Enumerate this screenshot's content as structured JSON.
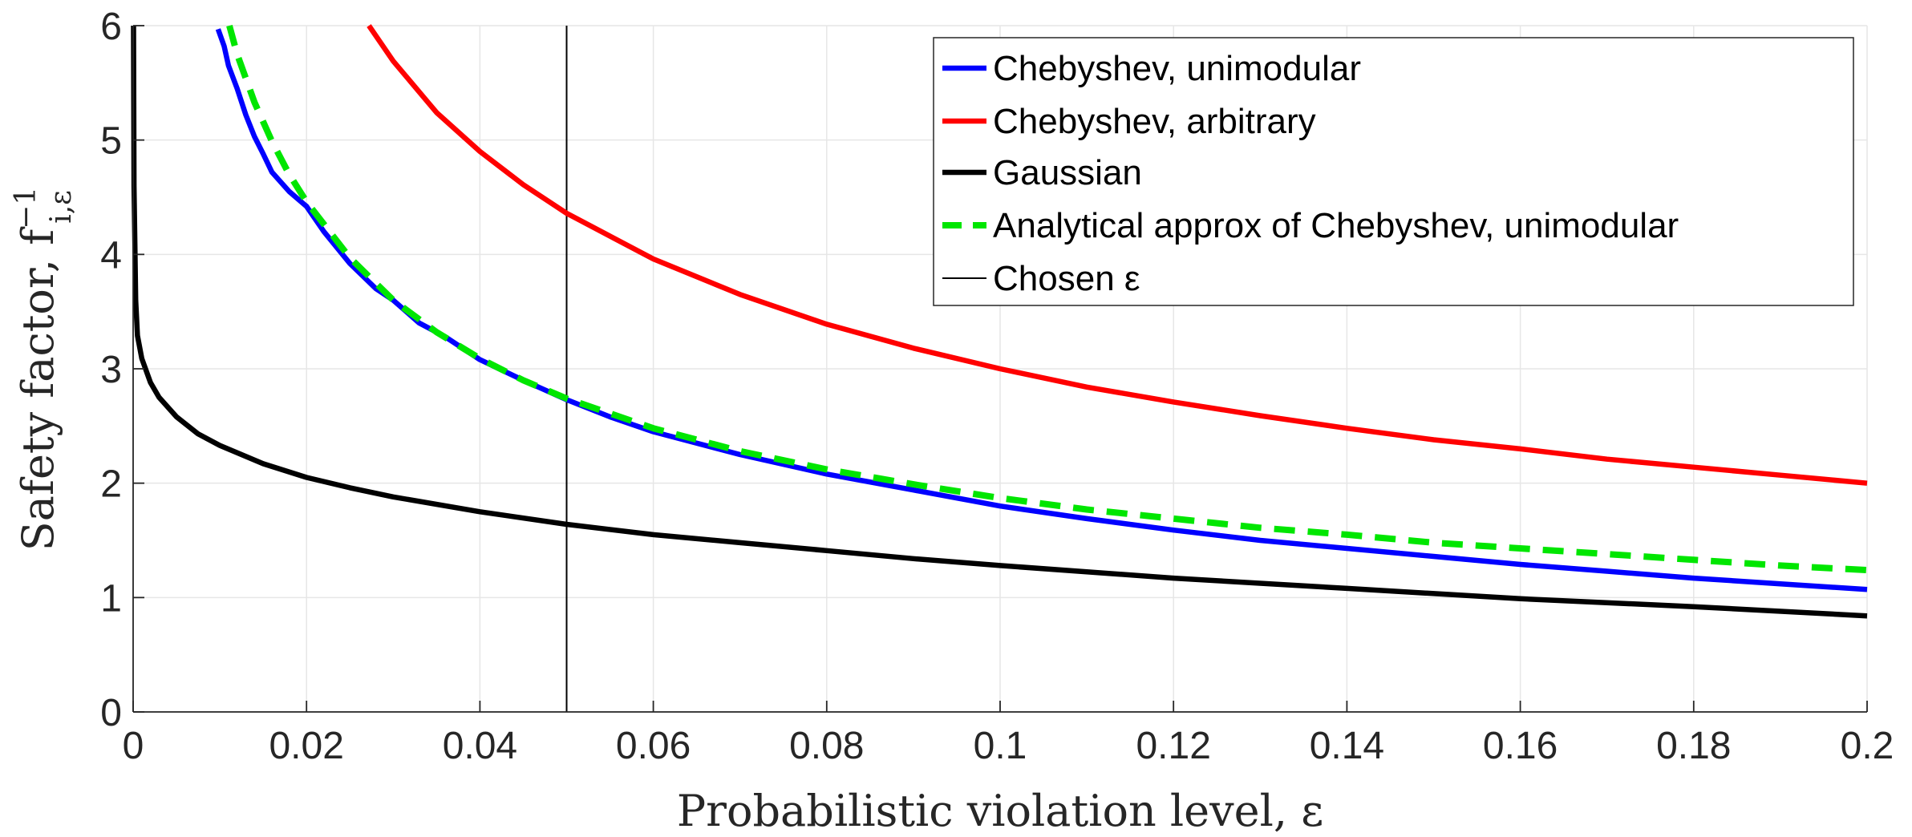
{
  "chart_data": {
    "type": "line",
    "title": "",
    "xlabel": "Probabilistic violation level, ε",
    "ylabel_text": "Safety factor, f",
    "ylabel_superscript": "−1",
    "ylabel_subscript": "i,ε",
    "xlim": [
      0,
      0.2
    ],
    "ylim": [
      0,
      6
    ],
    "grid": true,
    "legend_position": "top-right",
    "x_ticks": [
      0,
      0.02,
      0.04,
      0.06,
      0.08,
      0.1,
      0.12,
      0.14,
      0.16,
      0.18,
      0.2
    ],
    "x_tick_labels": [
      "0",
      "0.02",
      "0.04",
      "0.06",
      "0.08",
      "0.1",
      "0.12",
      "0.14",
      "0.16",
      "0.18",
      "0.2"
    ],
    "y_ticks": [
      0,
      1,
      2,
      3,
      4,
      5,
      6
    ],
    "y_tick_labels": [
      "0",
      "1",
      "2",
      "3",
      "4",
      "5",
      "6"
    ],
    "series": [
      {
        "name": "Chebyshev, unimodular",
        "color": "#0000ff",
        "style": "solid",
        "x": [
          0.0098,
          0.0105,
          0.011,
          0.012,
          0.013,
          0.014,
          0.015,
          0.016,
          0.018,
          0.02,
          0.022,
          0.025,
          0.028,
          0.03,
          0.033,
          0.036,
          0.04,
          0.045,
          0.05,
          0.055,
          0.06,
          0.07,
          0.08,
          0.09,
          0.1,
          0.11,
          0.12,
          0.13,
          0.14,
          0.15,
          0.16,
          0.17,
          0.18,
          0.19,
          0.2
        ],
        "values": [
          5.97,
          5.82,
          5.65,
          5.45,
          5.22,
          5.03,
          4.88,
          4.72,
          4.55,
          4.42,
          4.2,
          3.92,
          3.7,
          3.6,
          3.4,
          3.28,
          3.08,
          2.9,
          2.73,
          2.58,
          2.45,
          2.25,
          2.08,
          1.94,
          1.8,
          1.69,
          1.59,
          1.5,
          1.43,
          1.36,
          1.29,
          1.23,
          1.17,
          1.12,
          1.07
        ]
      },
      {
        "name": "Chebyshev, arbitrary",
        "color": "#ff0000",
        "style": "solid",
        "x": [
          0.0272,
          0.03,
          0.035,
          0.04,
          0.045,
          0.05,
          0.06,
          0.07,
          0.08,
          0.09,
          0.1,
          0.11,
          0.12,
          0.13,
          0.14,
          0.15,
          0.16,
          0.17,
          0.18,
          0.19,
          0.2
        ],
        "values": [
          6.0,
          5.69,
          5.24,
          4.9,
          4.61,
          4.36,
          3.96,
          3.65,
          3.39,
          3.18,
          3.0,
          2.84,
          2.71,
          2.59,
          2.48,
          2.38,
          2.3,
          2.21,
          2.14,
          2.07,
          2.0
        ]
      },
      {
        "name": "Gaussian",
        "color": "#000000",
        "style": "solid",
        "x": [
          5e-05,
          0.0001,
          0.0003,
          0.0005,
          0.001,
          0.002,
          0.003,
          0.005,
          0.0075,
          0.01,
          0.015,
          0.02,
          0.025,
          0.03,
          0.04,
          0.05,
          0.06,
          0.07,
          0.08,
          0.09,
          0.1,
          0.12,
          0.14,
          0.16,
          0.18,
          0.2
        ],
        "values": [
          6.0,
          4.6,
          3.6,
          3.29,
          3.09,
          2.88,
          2.75,
          2.58,
          2.43,
          2.33,
          2.17,
          2.05,
          1.96,
          1.88,
          1.75,
          1.64,
          1.55,
          1.48,
          1.41,
          1.34,
          1.28,
          1.17,
          1.08,
          0.99,
          0.92,
          0.84
        ]
      },
      {
        "name": "Analytical approx of Chebyshev, unimodular",
        "color": "#00e600",
        "style": "dashed",
        "x": [
          0.0111,
          0.012,
          0.014,
          0.016,
          0.018,
          0.02,
          0.025,
          0.03,
          0.035,
          0.04,
          0.045,
          0.05,
          0.06,
          0.07,
          0.08,
          0.09,
          0.1,
          0.11,
          0.12,
          0.13,
          0.14,
          0.15,
          0.16,
          0.17,
          0.18,
          0.19,
          0.2
        ],
        "values": [
          6.0,
          5.75,
          5.33,
          4.99,
          4.7,
          4.46,
          3.97,
          3.6,
          3.32,
          3.09,
          2.9,
          2.74,
          2.48,
          2.28,
          2.12,
          1.99,
          1.87,
          1.77,
          1.69,
          1.61,
          1.55,
          1.48,
          1.43,
          1.38,
          1.33,
          1.28,
          1.24
        ]
      },
      {
        "name": "Chosen ε",
        "color": "#000000",
        "style": "thin-solid",
        "x": [
          0.05,
          0.05
        ],
        "values": [
          0,
          6
        ]
      }
    ]
  }
}
